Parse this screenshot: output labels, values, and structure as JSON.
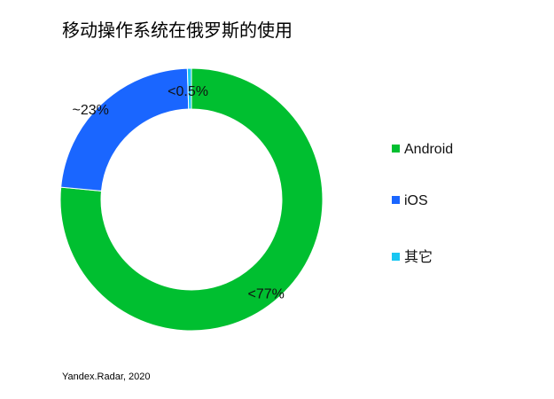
{
  "title": "移动操作系统在俄罗斯的使用",
  "source": "Yandex.Radar, 2020",
  "chart_data": {
    "type": "pie",
    "title": "移动操作系统在俄罗斯的使用",
    "series": [
      {
        "name": "Android",
        "value": 76.5,
        "label": "<77%",
        "color": "#00bf30"
      },
      {
        "name": "iOS",
        "value": 23,
        "label": "~23%",
        "color": "#1a66ff"
      },
      {
        "name": "其它",
        "value": 0.5,
        "label": "<0.5%",
        "color": "#19c6f2"
      }
    ],
    "legend_position": "right"
  }
}
